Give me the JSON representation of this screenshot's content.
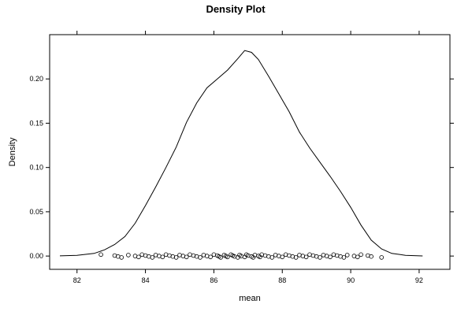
{
  "chart_data": {
    "type": "line",
    "title": "Density Plot",
    "xlabel": "mean",
    "ylabel": "Density",
    "xlim": [
      81.2,
      92.9
    ],
    "ylim": [
      -0.015,
      0.25
    ],
    "x_ticks": [
      82,
      84,
      86,
      88,
      90,
      92
    ],
    "x_tick_labels": [
      "82",
      "84",
      "86",
      "88",
      "90",
      "92"
    ],
    "y_ticks": [
      0.0,
      0.05,
      0.1,
      0.15,
      0.2
    ],
    "y_tick_labels": [
      "0.00",
      "0.05",
      "0.10",
      "0.15",
      "0.20"
    ],
    "grid": false,
    "legend": "none",
    "series": [
      {
        "x": [
          81.5,
          82.0,
          82.5,
          82.8,
          83.1,
          83.4,
          83.7,
          84.0,
          84.3,
          84.6,
          84.9,
          85.2,
          85.5,
          85.8,
          86.1,
          86.4,
          86.7,
          86.9,
          87.1,
          87.3,
          87.6,
          87.9,
          88.2,
          88.5,
          88.8,
          89.1,
          89.4,
          89.7,
          90.0,
          90.3,
          90.6,
          90.9,
          91.2,
          91.6,
          92.1
        ],
        "y": [
          0.0002,
          0.0008,
          0.003,
          0.007,
          0.013,
          0.022,
          0.037,
          0.057,
          0.078,
          0.1,
          0.123,
          0.151,
          0.173,
          0.19,
          0.2,
          0.21,
          0.223,
          0.232,
          0.23,
          0.222,
          0.203,
          0.183,
          0.163,
          0.14,
          0.122,
          0.106,
          0.09,
          0.073,
          0.055,
          0.035,
          0.018,
          0.008,
          0.003,
          0.0008,
          0.0001
        ]
      }
    ],
    "rug_points": [
      82.7,
      83.1,
      83.2,
      83.3,
      83.5,
      83.7,
      83.8,
      83.9,
      84.0,
      84.1,
      84.2,
      84.3,
      84.4,
      84.5,
      84.6,
      84.7,
      84.8,
      84.9,
      85.0,
      85.1,
      85.2,
      85.3,
      85.4,
      85.5,
      85.6,
      85.7,
      85.8,
      85.9,
      86.0,
      86.1,
      86.15,
      86.2,
      86.3,
      86.35,
      86.4,
      86.5,
      86.55,
      86.6,
      86.7,
      86.75,
      86.8,
      86.9,
      86.95,
      87.0,
      87.1,
      87.15,
      87.2,
      87.3,
      87.35,
      87.4,
      87.5,
      87.6,
      87.7,
      87.8,
      87.9,
      88.0,
      88.1,
      88.2,
      88.3,
      88.4,
      88.5,
      88.6,
      88.7,
      88.8,
      88.9,
      89.0,
      89.1,
      89.2,
      89.3,
      89.4,
      89.5,
      89.6,
      89.7,
      89.8,
      89.9,
      90.1,
      90.2,
      90.3,
      90.5,
      90.6,
      90.9
    ]
  }
}
